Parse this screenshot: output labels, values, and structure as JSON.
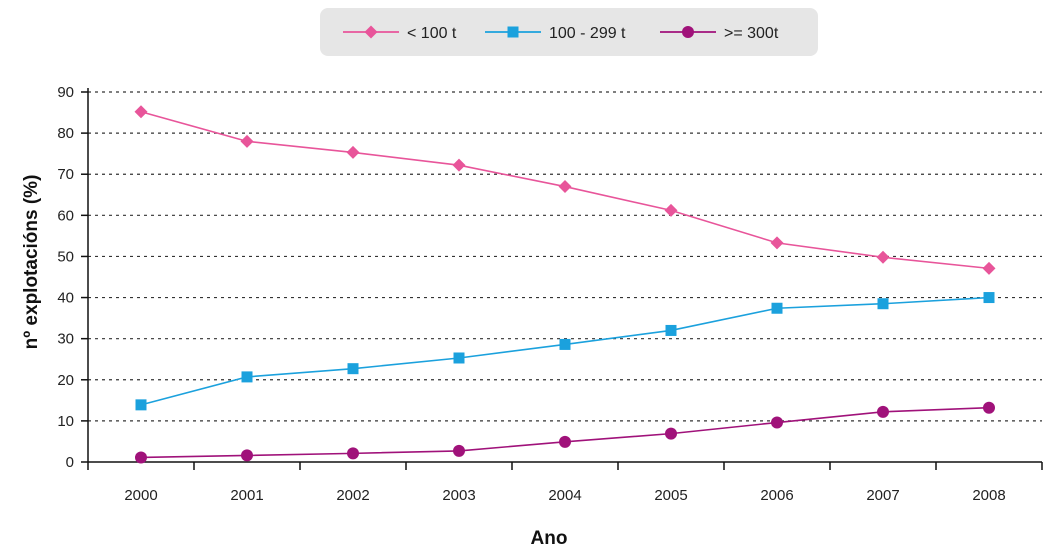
{
  "chart_data": {
    "type": "line",
    "title": "",
    "xlabel": "Ano",
    "ylabel": "nº explotacións (%)",
    "categories": [
      "2000",
      "2001",
      "2002",
      "2003",
      "2004",
      "2005",
      "2006",
      "2007",
      "2008"
    ],
    "ylim": [
      0,
      90
    ],
    "yticks": [
      0,
      10,
      20,
      30,
      40,
      50,
      60,
      70,
      80,
      90
    ],
    "grid": "horizontal dotted",
    "legend_position": "top-center",
    "series": [
      {
        "name": "< 100 t",
        "color": "#e8559a",
        "marker": "diamond",
        "values": [
          85.2,
          78.0,
          75.3,
          72.2,
          67.0,
          61.2,
          53.3,
          49.8,
          47.1
        ]
      },
      {
        "name": "100 - 299 t",
        "color": "#1ba1dd",
        "marker": "square",
        "values": [
          13.9,
          20.7,
          22.7,
          25.3,
          28.6,
          32.0,
          37.4,
          38.5,
          40.0
        ]
      },
      {
        "name": ">= 300t",
        "color": "#a0127a",
        "marker": "circle",
        "values": [
          1.1,
          1.6,
          2.1,
          2.7,
          4.9,
          6.9,
          9.6,
          12.2,
          13.2
        ]
      }
    ]
  }
}
